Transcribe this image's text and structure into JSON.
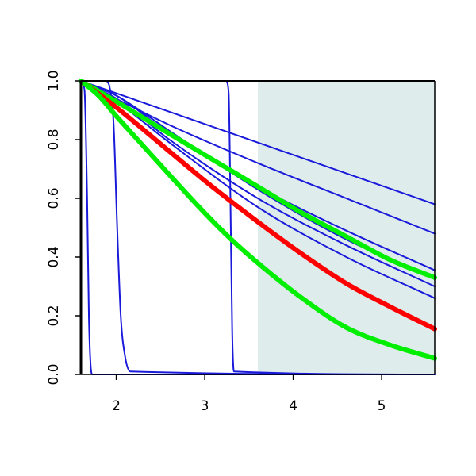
{
  "chart_data": {
    "type": "line",
    "title": "",
    "xlabel": "",
    "ylabel": "",
    "xlim": [
      1.6,
      5.6
    ],
    "ylim": [
      0.0,
      1.0
    ],
    "x_ticks": [
      2,
      3,
      4,
      5
    ],
    "x_tick_labels": [
      "2",
      "3",
      "4",
      "5"
    ],
    "y_ticks": [
      0.0,
      0.2,
      0.4,
      0.6,
      0.8,
      1.0
    ],
    "y_tick_labels": [
      "0.0",
      "0.2",
      "0.4",
      "0.6",
      "0.8",
      "1.0"
    ],
    "grid": false,
    "legend": "none",
    "shaded_region": {
      "x_start": 3.6,
      "x_end": 5.6,
      "color": "#dfecec"
    },
    "colors": {
      "blue": "#1a1adb",
      "red": "#ff0000",
      "green": "#00ee00"
    },
    "series": [
      {
        "color": "blue",
        "emphasis": "thin",
        "x": [
          1.6,
          1.64,
          1.67,
          1.69,
          1.71,
          1.73,
          5.6
        ],
        "y": [
          1.0,
          0.97,
          0.6,
          0.2,
          0.03,
          0.0,
          0.0
        ]
      },
      {
        "color": "blue",
        "emphasis": "thin",
        "x": [
          1.6,
          1.88,
          1.93,
          1.97,
          2.01,
          2.05,
          2.1,
          2.16,
          5.6
        ],
        "y": [
          1.0,
          1.0,
          0.97,
          0.85,
          0.5,
          0.2,
          0.06,
          0.01,
          0.0
        ]
      },
      {
        "color": "blue",
        "emphasis": "thin",
        "x": [
          1.6,
          3.24,
          3.27,
          3.29,
          3.31,
          3.33,
          5.6
        ],
        "y": [
          1.0,
          1.0,
          0.96,
          0.6,
          0.15,
          0.01,
          0.0
        ]
      },
      {
        "color": "blue",
        "emphasis": "thin",
        "x": [
          1.6,
          5.6
        ],
        "y": [
          1.0,
          0.58
        ]
      },
      {
        "color": "blue",
        "emphasis": "thin",
        "x": [
          1.6,
          2.6,
          3.6,
          4.6,
          5.6
        ],
        "y": [
          1.0,
          0.85,
          0.72,
          0.6,
          0.48
        ]
      },
      {
        "color": "blue",
        "emphasis": "thin",
        "x": [
          1.6,
          2.0,
          2.6,
          3.6,
          4.6,
          5.6
        ],
        "y": [
          1.0,
          0.95,
          0.82,
          0.64,
          0.49,
          0.355
        ]
      },
      {
        "color": "blue",
        "emphasis": "thin",
        "x": [
          1.6,
          2.0,
          2.6,
          3.6,
          4.6,
          5.6
        ],
        "y": [
          1.0,
          0.95,
          0.83,
          0.63,
          0.46,
          0.33
        ]
      },
      {
        "color": "blue",
        "emphasis": "thin",
        "x": [
          1.6,
          2.0,
          2.6,
          3.6,
          4.6,
          5.6
        ],
        "y": [
          1.0,
          0.94,
          0.8,
          0.6,
          0.44,
          0.3
        ]
      },
      {
        "color": "blue",
        "emphasis": "thin",
        "x": [
          1.6,
          2.0,
          2.6,
          3.6,
          4.6,
          5.6
        ],
        "y": [
          1.0,
          0.93,
          0.79,
          0.57,
          0.4,
          0.26
        ]
      },
      {
        "color": "green",
        "emphasis": "thick",
        "x": [
          1.6,
          2.0,
          2.6,
          3.1,
          3.6,
          4.1,
          4.6,
          5.1,
          5.6
        ],
        "y": [
          1.0,
          0.93,
          0.82,
          0.73,
          0.64,
          0.55,
          0.47,
          0.39,
          0.33
        ]
      },
      {
        "color": "red",
        "emphasis": "thick",
        "x": [
          1.6,
          2.0,
          2.6,
          3.0,
          3.6,
          4.1,
          4.6,
          5.1,
          5.6
        ],
        "y": [
          1.0,
          0.91,
          0.76,
          0.66,
          0.52,
          0.41,
          0.31,
          0.23,
          0.155
        ]
      },
      {
        "color": "green",
        "emphasis": "thick",
        "x": [
          1.6,
          1.8,
          2.0,
          2.3,
          2.6,
          3.0,
          3.3,
          3.6,
          4.1,
          4.6,
          5.1,
          5.6
        ],
        "y": [
          1.0,
          0.95,
          0.88,
          0.78,
          0.68,
          0.55,
          0.46,
          0.38,
          0.26,
          0.16,
          0.1,
          0.055
        ]
      }
    ]
  }
}
